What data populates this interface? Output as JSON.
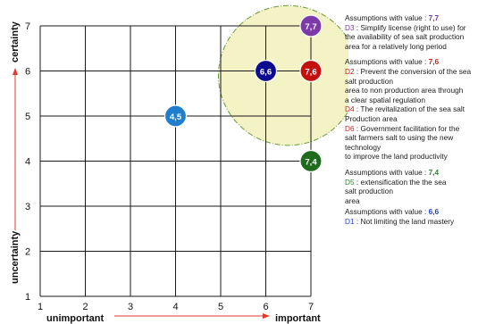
{
  "colors": {
    "grid": "#1a1a1a",
    "highlight_fill": "#f3f3c5",
    "highlight_stroke": "#6a9a3a",
    "axis_arrow": "#e23a2a",
    "purple": "#7b3aa8",
    "red": "#c40f0f",
    "navy": "#0b0b8f",
    "blue": "#1f7fcc",
    "green": "#1d6b1d",
    "assump_red": "#d0241c",
    "assump_green": "#2c8a2c",
    "assump_blue": "#2142c7",
    "assump_purple": "#7b3aa8",
    "d_code_red": "#cc1e1e",
    "d_code_green": "#2a8a2a",
    "d_code_blue": "#2142c7",
    "d_code_purple": "#7b3aa8"
  },
  "chart_data": {
    "type": "scatter",
    "x_ticks": [
      "1",
      "2",
      "3",
      "4",
      "5",
      "6",
      "7"
    ],
    "y_ticks": [
      "1",
      "2",
      "3",
      "4",
      "5",
      "6",
      "7"
    ],
    "xlim": [
      1,
      7
    ],
    "ylim": [
      1,
      7
    ],
    "grid": true,
    "x_axis_labels": {
      "left": "unimportant",
      "right": "important"
    },
    "y_axis_labels": {
      "bottom": "uncertainty",
      "top": "certainty"
    },
    "highlight_region": {
      "cx": 6.5,
      "cy": 5.9,
      "r": 1.55
    },
    "points": [
      {
        "x": 7,
        "y": 7,
        "label": "7,7",
        "color_key": "purple"
      },
      {
        "x": 6,
        "y": 6,
        "label": "6,6",
        "color_key": "navy"
      },
      {
        "x": 7,
        "y": 6,
        "label": "7,6",
        "color_key": "red"
      },
      {
        "x": 4,
        "y": 5,
        "label": "4,5",
        "color_key": "blue"
      },
      {
        "x": 7,
        "y": 4,
        "label": "7,4",
        "color_key": "green"
      }
    ]
  },
  "legend": {
    "block1": {
      "heading": "Assumptions with value : ",
      "value": "7,7",
      "items": [
        {
          "code": "D3",
          "text": " : Simplify license (right to use) for"
        },
        {
          "code": "",
          "text": "the availability of sea salt production"
        },
        {
          "code": "",
          "text": " area for a relatively long period"
        }
      ]
    },
    "block2": {
      "heading": "Assumptions with value : ",
      "value": "7,6",
      "items": [
        {
          "code": "D2",
          "text": " : Prevent the conversion of the sea"
        },
        {
          "code": "",
          "text": "salt production"
        },
        {
          "code": "",
          "text": " area to non production area through"
        },
        {
          "code": "",
          "text": "a clear spatial regulation"
        },
        {
          "code": "D4",
          "text": " : The revitalization of the sea salt"
        },
        {
          "code": "",
          "text": "Production area"
        },
        {
          "code": "D6",
          "text": " : Government facilitation for the"
        },
        {
          "code": "",
          "text": "salt  farmers salt to using the new"
        },
        {
          "code": "",
          "text": "technology"
        },
        {
          "code": "",
          "text": "to improve the land productivity"
        }
      ]
    },
    "block3": {
      "heading": " Assumptions with value : ",
      "value": "7,4",
      "items": [
        {
          "code": " D5",
          "text": " : extensification the the sea"
        },
        {
          "code": "",
          "text": " salt production"
        },
        {
          "code": "",
          "text": "  area"
        }
      ]
    },
    "block4": {
      "heading": " Assumptions with value : ",
      "value": "6,6",
      "items": [
        {
          "code": " D1",
          "text": " : Not limiting  the land mastery"
        }
      ]
    }
  }
}
